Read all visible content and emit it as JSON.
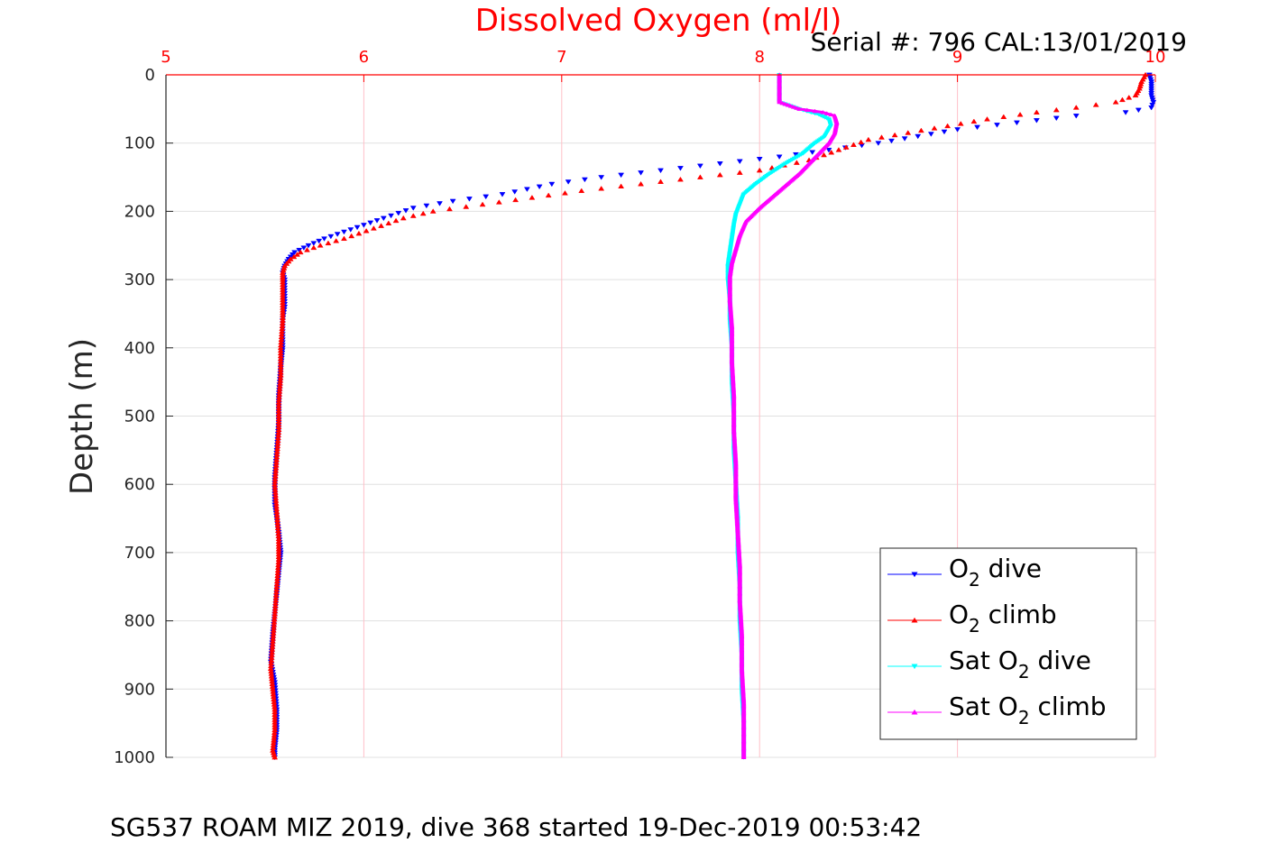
{
  "chart_data": {
    "type": "scatter",
    "title": "Dissolved Oxygen (ml/l)",
    "subtitle": "Serial #: 796  CAL:13/01/2019",
    "footer": "SG537 ROAM MIZ 2019, dive 368 started 19-Dec-2019 00:53:42",
    "xlabel": "Dissolved Oxygen (ml/l)",
    "ylabel": "Depth (m)",
    "xlim": [
      5,
      10
    ],
    "ylim": [
      0,
      1000
    ],
    "y_reversed": true,
    "x_axis_position": "top",
    "x_ticks": [
      "5",
      "6",
      "7",
      "8",
      "9",
      "10"
    ],
    "y_ticks": [
      "0",
      "100",
      "200",
      "300",
      "400",
      "500",
      "600",
      "700",
      "800",
      "900",
      "1000"
    ],
    "grid": true,
    "legend_position": "bottom-right",
    "colors": {
      "o2_dive": "#0000ff",
      "o2_climb": "#ff0000",
      "sat_dive": "#00ffff",
      "sat_climb": "#ff00ff",
      "x_axis": "#ff0000",
      "grid": "#e0e0e0",
      "x_grid": "#ffc0c8"
    },
    "series": [
      {
        "name": "O2 dive",
        "legend": {
          "pre": "O",
          "sub": "2",
          "post": " dive"
        },
        "marker": "triangle-down",
        "color": "#0000ff",
        "points": [
          [
            9.97,
            0
          ],
          [
            9.98,
            10
          ],
          [
            9.98,
            20
          ],
          [
            9.98,
            30
          ],
          [
            9.99,
            40
          ],
          [
            9.98,
            48
          ],
          [
            9.85,
            55
          ],
          [
            9.6,
            60
          ],
          [
            9.3,
            70
          ],
          [
            9.0,
            80
          ],
          [
            8.8,
            90
          ],
          [
            8.6,
            100
          ],
          [
            8.35,
            110
          ],
          [
            8.1,
            120
          ],
          [
            7.8,
            130
          ],
          [
            7.5,
            140
          ],
          [
            7.2,
            150
          ],
          [
            6.95,
            160
          ],
          [
            6.7,
            175
          ],
          [
            6.45,
            185
          ],
          [
            6.25,
            195
          ],
          [
            6.1,
            210
          ],
          [
            6.0,
            220
          ],
          [
            5.9,
            230
          ],
          [
            5.8,
            240
          ],
          [
            5.72,
            250
          ],
          [
            5.65,
            260
          ],
          [
            5.62,
            270
          ],
          [
            5.6,
            280
          ],
          [
            5.59,
            290
          ],
          [
            5.6,
            300
          ],
          [
            5.6,
            320
          ],
          [
            5.6,
            340
          ],
          [
            5.59,
            360
          ],
          [
            5.59,
            380
          ],
          [
            5.59,
            400
          ],
          [
            5.58,
            430
          ],
          [
            5.57,
            470
          ],
          [
            5.57,
            510
          ],
          [
            5.56,
            550
          ],
          [
            5.55,
            590
          ],
          [
            5.55,
            630
          ],
          [
            5.57,
            670
          ],
          [
            5.58,
            700
          ],
          [
            5.57,
            730
          ],
          [
            5.56,
            760
          ],
          [
            5.55,
            790
          ],
          [
            5.54,
            820
          ],
          [
            5.53,
            860
          ],
          [
            5.55,
            890
          ],
          [
            5.56,
            930
          ],
          [
            5.56,
            960
          ],
          [
            5.55,
            990
          ],
          [
            5.55,
            1000
          ]
        ]
      },
      {
        "name": "O2 climb",
        "legend": {
          "pre": "O",
          "sub": "2",
          "post": " climb"
        },
        "marker": "triangle-up",
        "color": "#ff0000",
        "points": [
          [
            9.95,
            0
          ],
          [
            9.93,
            10
          ],
          [
            9.92,
            20
          ],
          [
            9.9,
            30
          ],
          [
            9.8,
            40
          ],
          [
            9.6,
            48
          ],
          [
            9.4,
            55
          ],
          [
            9.15,
            65
          ],
          [
            8.95,
            75
          ],
          [
            8.75,
            85
          ],
          [
            8.55,
            95
          ],
          [
            8.4,
            110
          ],
          [
            8.25,
            125
          ],
          [
            8.0,
            140
          ],
          [
            7.7,
            150
          ],
          [
            7.4,
            160
          ],
          [
            7.1,
            170
          ],
          [
            6.85,
            180
          ],
          [
            6.6,
            190
          ],
          [
            6.35,
            200
          ],
          [
            6.2,
            210
          ],
          [
            6.05,
            225
          ],
          [
            5.9,
            240
          ],
          [
            5.78,
            250
          ],
          [
            5.68,
            260
          ],
          [
            5.63,
            270
          ],
          [
            5.6,
            280
          ],
          [
            5.59,
            290
          ],
          [
            5.59,
            300
          ],
          [
            5.59,
            330
          ],
          [
            5.59,
            360
          ],
          [
            5.58,
            400
          ],
          [
            5.58,
            440
          ],
          [
            5.57,
            480
          ],
          [
            5.57,
            520
          ],
          [
            5.56,
            560
          ],
          [
            5.55,
            600
          ],
          [
            5.56,
            640
          ],
          [
            5.57,
            680
          ],
          [
            5.57,
            710
          ],
          [
            5.56,
            750
          ],
          [
            5.55,
            790
          ],
          [
            5.54,
            830
          ],
          [
            5.53,
            870
          ],
          [
            5.54,
            900
          ],
          [
            5.55,
            930
          ],
          [
            5.55,
            960
          ],
          [
            5.54,
            990
          ],
          [
            5.55,
            1000
          ]
        ]
      },
      {
        "name": "Sat O2 dive",
        "legend": {
          "pre": "Sat O",
          "sub": "2",
          "post": " dive"
        },
        "marker": "triangle-down",
        "color": "#00ffff",
        "points": [
          [
            8.1,
            0
          ],
          [
            8.1,
            20
          ],
          [
            8.1,
            40
          ],
          [
            8.2,
            50
          ],
          [
            8.3,
            58
          ],
          [
            8.35,
            65
          ],
          [
            8.36,
            75
          ],
          [
            8.33,
            90
          ],
          [
            8.28,
            100
          ],
          [
            8.22,
            115
          ],
          [
            8.13,
            130
          ],
          [
            8.05,
            145
          ],
          [
            7.98,
            160
          ],
          [
            7.92,
            175
          ],
          [
            7.9,
            190
          ],
          [
            7.88,
            205
          ],
          [
            7.87,
            220
          ],
          [
            7.86,
            240
          ],
          [
            7.85,
            260
          ],
          [
            7.84,
            280
          ],
          [
            7.84,
            300
          ],
          [
            7.85,
            330
          ],
          [
            7.85,
            360
          ],
          [
            7.86,
            400
          ],
          [
            7.86,
            450
          ],
          [
            7.87,
            500
          ],
          [
            7.87,
            550
          ],
          [
            7.88,
            600
          ],
          [
            7.89,
            650
          ],
          [
            7.89,
            700
          ],
          [
            7.9,
            750
          ],
          [
            7.9,
            800
          ],
          [
            7.91,
            850
          ],
          [
            7.91,
            900
          ],
          [
            7.92,
            950
          ],
          [
            7.92,
            1000
          ]
        ]
      },
      {
        "name": "Sat O2 climb",
        "legend": {
          "pre": "Sat O",
          "sub": "2",
          "post": " climb"
        },
        "marker": "triangle-up",
        "color": "#ff00ff",
        "points": [
          [
            8.1,
            0
          ],
          [
            8.1,
            20
          ],
          [
            8.1,
            40
          ],
          [
            8.2,
            50
          ],
          [
            8.32,
            55
          ],
          [
            8.38,
            60
          ],
          [
            8.39,
            70
          ],
          [
            8.38,
            85
          ],
          [
            8.35,
            100
          ],
          [
            8.3,
            115
          ],
          [
            8.25,
            130
          ],
          [
            8.2,
            145
          ],
          [
            8.1,
            170
          ],
          [
            8.0,
            195
          ],
          [
            7.93,
            215
          ],
          [
            7.9,
            235
          ],
          [
            7.88,
            255
          ],
          [
            7.86,
            275
          ],
          [
            7.85,
            295
          ],
          [
            7.85,
            330
          ],
          [
            7.86,
            370
          ],
          [
            7.86,
            420
          ],
          [
            7.87,
            470
          ],
          [
            7.87,
            520
          ],
          [
            7.88,
            570
          ],
          [
            7.88,
            620
          ],
          [
            7.89,
            670
          ],
          [
            7.9,
            720
          ],
          [
            7.9,
            770
          ],
          [
            7.91,
            820
          ],
          [
            7.91,
            870
          ],
          [
            7.92,
            920
          ],
          [
            7.92,
            970
          ],
          [
            7.92,
            1000
          ]
        ]
      }
    ]
  }
}
